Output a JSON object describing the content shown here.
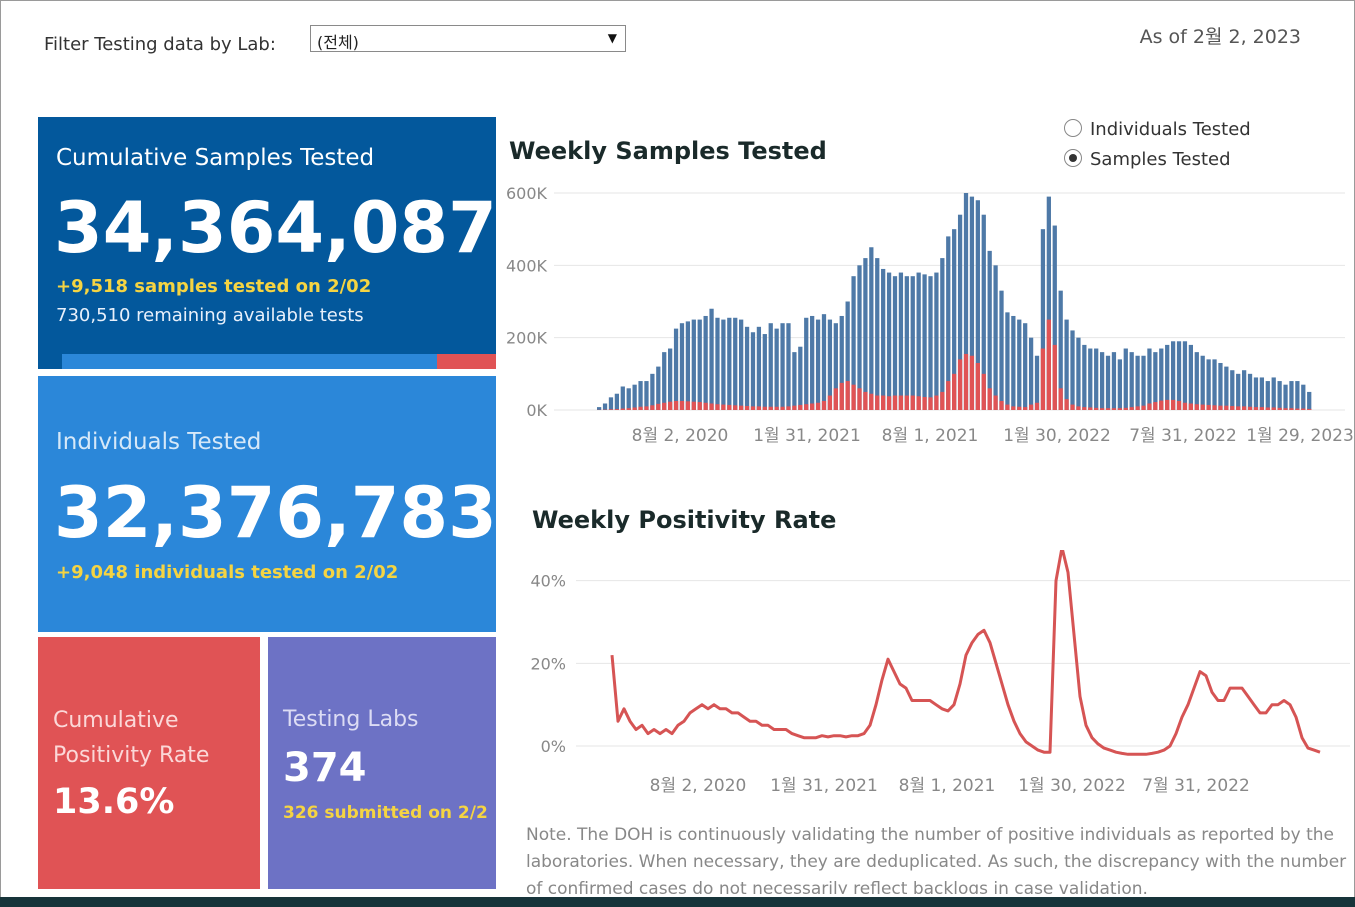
{
  "filter": {
    "label": "Filter Testing data by Lab:",
    "value": "(전체)"
  },
  "as_of": "As of 2월 2, 2023",
  "tiles": {
    "cumulative": {
      "title": "Cumulative Samples Tested",
      "value": "34,364,087",
      "new_line": "+9,518 samples tested on 2/02",
      "remaining_line": "730,510 remaining available tests",
      "used_fraction": 0.865,
      "colors": {
        "bg": "#03589c",
        "used": "#2b87d9",
        "remaining": "#e05355"
      }
    },
    "individuals": {
      "title": "Individuals Tested",
      "value": "32,376,783",
      "new_line": "+9,048  individuals  tested on 2/02"
    },
    "positivity": {
      "title_1": "Cumulative",
      "title_2": "Positivity Rate",
      "value": "13.6%"
    },
    "labs": {
      "title": "Testing Labs",
      "value": "374",
      "submitted_line": "326 submitted on 2/2"
    }
  },
  "toggle": {
    "options": [
      {
        "label": "Individuals Tested",
        "selected": false
      },
      {
        "label": "Samples Tested",
        "selected": true
      }
    ]
  },
  "chart_data": [
    {
      "type": "bar",
      "title": "Weekly Samples Tested",
      "ylim": [
        0,
        600000
      ],
      "y_ticks": [
        "0K",
        "200K",
        "400K",
        "600K"
      ],
      "x_tick_labels": [
        "8월 2, 2020",
        "1월 31, 2021",
        "8월 1, 2021",
        "1월 30, 2022",
        "7월 31, 2022",
        "1월 29, 2023"
      ],
      "series": [
        {
          "color": "#4e79a7",
          "values": [
            8000,
            18000,
            35000,
            45000,
            65000,
            60000,
            70000,
            80000,
            80000,
            100000,
            120000,
            160000,
            170000,
            225000,
            240000,
            245000,
            250000,
            250000,
            260000,
            280000,
            255000,
            250000,
            255000,
            255000,
            250000,
            230000,
            215000,
            230000,
            210000,
            240000,
            225000,
            240000,
            240000,
            160000,
            175000,
            255000,
            260000,
            250000,
            265000,
            250000,
            240000,
            260000,
            300000,
            370000,
            400000,
            420000,
            450000,
            420000,
            390000,
            380000,
            370000,
            380000,
            370000,
            370000,
            380000,
            375000,
            370000,
            380000,
            420000,
            480000,
            500000,
            540000,
            600000,
            590000,
            580000,
            540000,
            440000,
            400000,
            330000,
            270000,
            260000,
            250000,
            240000,
            200000,
            150000,
            500000,
            590000,
            510000,
            330000,
            250000,
            220000,
            200000,
            180000,
            170000,
            170000,
            160000,
            150000,
            160000,
            140000,
            170000,
            160000,
            150000,
            150000,
            170000,
            160000,
            170000,
            180000,
            190000,
            190000,
            190000,
            180000,
            160000,
            150000,
            140000,
            140000,
            130000,
            120000,
            110000,
            100000,
            110000,
            100000,
            90000,
            90000,
            80000,
            90000,
            80000,
            70000,
            80000,
            80000,
            70000,
            50000
          ]
        },
        {
          "color": "#e05355",
          "values": [
            500,
            1000,
            2000,
            2500,
            4000,
            5000,
            7000,
            9000,
            10000,
            13000,
            17000,
            20000,
            23000,
            25000,
            25000,
            24000,
            23000,
            22000,
            20000,
            18000,
            16000,
            15000,
            14000,
            13000,
            12000,
            11000,
            10000,
            10000,
            9000,
            9000,
            9000,
            9000,
            10000,
            12000,
            14000,
            16000,
            18000,
            20000,
            25000,
            40000,
            60000,
            75000,
            80000,
            70000,
            60000,
            50000,
            45000,
            40000,
            40000,
            38000,
            40000,
            40000,
            40000,
            40000,
            38000,
            36000,
            35000,
            40000,
            50000,
            80000,
            100000,
            140000,
            155000,
            150000,
            130000,
            100000,
            60000,
            40000,
            25000,
            15000,
            10000,
            9000,
            8000,
            15000,
            20000,
            170000,
            250000,
            180000,
            60000,
            30000,
            15000,
            10000,
            8000,
            7000,
            6000,
            5000,
            5000,
            5000,
            5000,
            6000,
            8000,
            10000,
            12000,
            18000,
            22000,
            26000,
            28000,
            28000,
            25000,
            20000,
            18000,
            16000,
            15000,
            14000,
            13000,
            12000,
            12000,
            11000,
            10000,
            10000,
            9000,
            8000,
            8000,
            7000,
            7000,
            6000,
            5000,
            5000,
            4000,
            4000,
            3000
          ]
        }
      ]
    },
    {
      "type": "line",
      "title": "Weekly Positivity Rate",
      "ylim": [
        0,
        45
      ],
      "y_ticks": [
        "0%",
        "20%",
        "40%"
      ],
      "x_tick_labels": [
        "8월 2, 2020",
        "1월 31, 2021",
        "8월 1, 2021",
        "1월 30, 2022",
        "7월 31, 2022"
      ],
      "series": [
        {
          "color": "#d65454",
          "values": [
            22,
            6,
            9,
            6,
            4,
            5,
            3,
            4,
            3,
            4,
            3,
            5,
            6,
            8,
            9,
            10,
            9,
            10,
            9,
            9,
            8,
            8,
            7,
            6,
            6,
            5,
            5,
            4,
            4,
            4,
            3,
            2.5,
            2,
            2,
            2,
            2.5,
            2.2,
            2.5,
            2.5,
            2.2,
            2.5,
            2.5,
            3,
            5,
            10,
            16,
            21,
            18,
            15,
            14,
            11,
            11,
            11,
            11,
            10,
            9,
            8.5,
            10,
            15,
            22,
            25,
            27,
            28,
            25,
            20,
            15,
            10,
            6,
            3,
            1,
            0,
            -1,
            -1.5,
            -1.5,
            40,
            48,
            42,
            27,
            12,
            5,
            2,
            0.5,
            -0.5,
            -1,
            -1.5,
            -1.8,
            -2,
            -2,
            -2,
            -2,
            -1.8,
            -1.5,
            -1,
            0,
            3,
            7,
            10,
            14,
            18,
            17,
            13,
            11,
            11,
            14,
            14,
            14,
            12,
            10,
            8,
            8,
            10,
            10,
            11,
            10,
            7,
            2,
            -0.5,
            -1,
            -1.5
          ]
        }
      ]
    }
  ],
  "note": "Note. The DOH is continuously validating the number of positive individuals as reported by the laboratories. When necessary, they are deduplicated. As such, the discrepancy with the number of confirmed cases do not necessarily reflect backlogs in case validation."
}
